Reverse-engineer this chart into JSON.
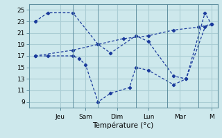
{
  "background_color": "#cde8ec",
  "grid_color": "#aacdd4",
  "line_color": "#1a3a9c",
  "xlabel": "Température (°c)",
  "ylim": [
    8,
    26
  ],
  "yticks": [
    9,
    11,
    13,
    15,
    17,
    19,
    21,
    23,
    25
  ],
  "xlim": [
    0,
    15
  ],
  "day_tick_positions": [
    2.5,
    4.5,
    7,
    9.5,
    12,
    14.5
  ],
  "day_labels": [
    "Jeu",
    "Sam",
    "Dim",
    "Lun",
    "Mar",
    "M"
  ],
  "day_vline_positions": [
    3.5,
    5.5,
    8.5,
    11,
    13.5
  ],
  "series": [
    {
      "x": [
        0.5,
        1.5,
        3.5,
        5.5,
        6.5,
        8.5,
        9.5,
        11.5,
        12.5,
        14.0,
        14.5
      ],
      "y": [
        23.0,
        24.5,
        24.5,
        19.0,
        17.5,
        20.5,
        19.5,
        13.5,
        13.0,
        24.5,
        22.5
      ]
    },
    {
      "x": [
        0.5,
        1.5,
        3.5,
        4.0,
        4.5,
        5.5,
        6.5,
        8.0,
        8.5,
        9.5,
        11.5,
        12.5,
        14.0,
        14.5
      ],
      "y": [
        17.0,
        17.0,
        17.0,
        16.5,
        15.5,
        9.0,
        10.5,
        11.5,
        15.0,
        14.5,
        12.0,
        13.0,
        22.0,
        22.5
      ]
    },
    {
      "x": [
        0.5,
        3.5,
        5.5,
        7.5,
        9.5,
        11.5,
        13.5,
        14.5
      ],
      "y": [
        17.0,
        18.0,
        19.0,
        20.0,
        20.5,
        21.5,
        22.0,
        22.5
      ]
    }
  ]
}
